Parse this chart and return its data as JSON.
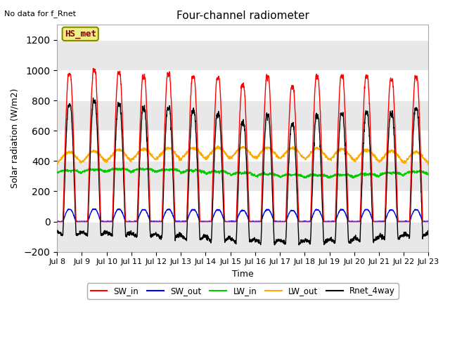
{
  "title": "Four-channel radiometer",
  "top_left_note": "No data for f_Rnet",
  "station_label": "HS_met",
  "ylabel": "Solar radiation (W/m2)",
  "xlabel": "Time",
  "ylim": [
    -200,
    1300
  ],
  "yticks": [
    -200,
    0,
    200,
    400,
    600,
    800,
    1000,
    1200
  ],
  "x_start_day": 8,
  "x_end_day": 23,
  "xtick_days": [
    8,
    9,
    10,
    11,
    12,
    13,
    14,
    15,
    16,
    17,
    18,
    19,
    20,
    21,
    22,
    23
  ],
  "colors": {
    "SW_in": "#ff0000",
    "SW_out": "#0000ff",
    "LW_in": "#00cc00",
    "LW_out": "#ffaa00",
    "Rnet_4way": "#000000"
  },
  "legend_labels": [
    "SW_in",
    "SW_out",
    "LW_in",
    "LW_out",
    "Rnet_4way"
  ],
  "bg_color": "#ffffff",
  "plot_bg_color": "#ffffff",
  "grid_color": "#d0d0d0",
  "station_box_facecolor": "#eeee88",
  "station_box_edgecolor": "#888800",
  "station_text_color": "#880000",
  "figsize": [
    6.4,
    4.8
  ],
  "dpi": 100
}
